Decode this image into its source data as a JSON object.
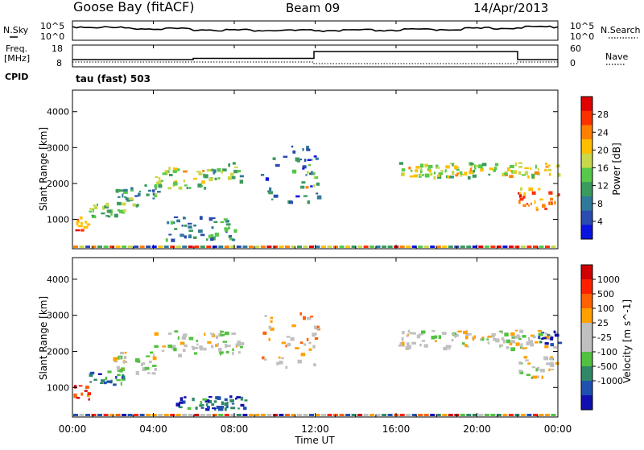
{
  "header": {
    "site": "Goose Bay (fitACF)",
    "beam": "Beam 09",
    "date": "14/Apr/2013"
  },
  "noise_panel": {
    "left_label": "N.Sky",
    "left_ticks": [
      "10^5",
      "10^0"
    ],
    "right_ticks": [
      "10^5",
      "10^0"
    ],
    "right_label": "N.Search"
  },
  "freq_panel": {
    "left_label_1": "Freq.",
    "left_label_2": "[MHz]",
    "left_ticks": [
      "18",
      "8"
    ],
    "right_ticks": [
      "60",
      "0"
    ],
    "right_label": "Nave",
    "cpid_label": "CPID",
    "cpid_value": "tau (fast) 503"
  },
  "chart_data": [
    {
      "type": "heatmap",
      "panel": "power",
      "ylabel": "Slant Range [km]",
      "ylim": [
        180,
        4600
      ],
      "yticks": [
        "1000",
        "2000",
        "3000",
        "4000"
      ],
      "colorbar_label": "Power [dB]",
      "colorbar_ticks": [
        "4",
        "8",
        "12",
        "16",
        "20",
        "24",
        "28"
      ],
      "colorbar_colors": [
        "#0a14e0",
        "#2a4bb0",
        "#2f7a9a",
        "#3b9a5e",
        "#56c84a",
        "#c8d84a",
        "#ffbf00",
        "#ff8000",
        "#ff3000",
        "#e00000"
      ],
      "echo_regions": [
        {
          "t": [
            0.0,
            0.8
          ],
          "r": [
            700,
            1100
          ],
          "level": 0.75
        },
        {
          "t": [
            0.8,
            2.5
          ],
          "r": [
            1100,
            1500
          ],
          "level": 0.45
        },
        {
          "t": [
            2.0,
            4.2
          ],
          "r": [
            1400,
            2000
          ],
          "level": 0.35
        },
        {
          "t": [
            4.0,
            6.5
          ],
          "r": [
            1900,
            2500
          ],
          "level": 0.55
        },
        {
          "t": [
            6.5,
            8.3
          ],
          "r": [
            2100,
            2600
          ],
          "level": 0.45
        },
        {
          "t": [
            4.5,
            8.0
          ],
          "r": [
            450,
            1100
          ],
          "level": 0.3
        },
        {
          "t": [
            9.3,
            12.2
          ],
          "r": [
            1500,
            3100
          ],
          "level": 0.25
        },
        {
          "t": [
            11.5,
            12.0
          ],
          "r": [
            1900,
            2600
          ],
          "level": 0.6
        },
        {
          "t": [
            16.0,
            24.0
          ],
          "r": [
            2200,
            2600
          ],
          "level": 0.55
        },
        {
          "t": [
            22.0,
            24.0
          ],
          "r": [
            1300,
            1900
          ],
          "level": 0.75
        }
      ]
    },
    {
      "type": "heatmap",
      "panel": "velocity",
      "ylabel": "Slant Range [km]",
      "ylim": [
        180,
        4600
      ],
      "yticks": [
        "1000",
        "2000",
        "3000",
        "4000"
      ],
      "colorbar_label": "Velocity [m s^-1]",
      "colorbar_ticks": [
        "1000",
        "500",
        "100",
        "25",
        "-25",
        "-100",
        "-500",
        "-1000"
      ],
      "colorbar_colors": [
        "#1010b0",
        "#2050b0",
        "#308868",
        "#52c040",
        "#c0c0c0",
        "#c0c0c0",
        "#ffa000",
        "#ff6000",
        "#ff2000",
        "#d00000"
      ],
      "echo_regions": [
        {
          "t": [
            0.0,
            0.8
          ],
          "r": [
            700,
            1100
          ],
          "vel": 0.85
        },
        {
          "t": [
            0.8,
            2.5
          ],
          "r": [
            1100,
            1500
          ],
          "vel": 0.25
        },
        {
          "t": [
            2.0,
            4.2
          ],
          "r": [
            1400,
            2000
          ],
          "vel": 0.5
        },
        {
          "t": [
            4.0,
            8.3
          ],
          "r": [
            1900,
            2600
          ],
          "vel": 0.5
        },
        {
          "t": [
            5.0,
            8.5
          ],
          "r": [
            400,
            800
          ],
          "vel": 0.15
        },
        {
          "t": [
            9.3,
            12.2
          ],
          "r": [
            1500,
            3100
          ],
          "vel": 0.6
        },
        {
          "t": [
            16.0,
            24.0
          ],
          "r": [
            2100,
            2600
          ],
          "vel": 0.5
        },
        {
          "t": [
            22.0,
            24.0
          ],
          "r": [
            1300,
            1900
          ],
          "vel": 0.5
        },
        {
          "t": [
            23.0,
            24.0
          ],
          "r": [
            2200,
            2600
          ],
          "vel": 0.15
        }
      ]
    }
  ],
  "x_axis": {
    "ticks": [
      "00:00",
      "04:00",
      "08:00",
      "12:00",
      "16:00",
      "20:00",
      "00:00"
    ],
    "label": "Time UT"
  }
}
